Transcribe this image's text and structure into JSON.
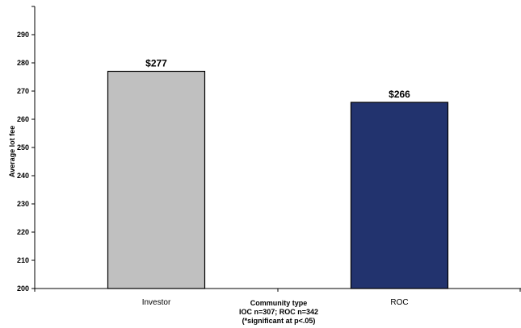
{
  "chart_data": {
    "type": "bar",
    "categories": [
      "Investor",
      "ROC"
    ],
    "values": [
      277,
      266
    ],
    "data_labels": [
      "$277",
      "$266"
    ],
    "bar_colors": [
      "#c0c0c0",
      "#22336e"
    ],
    "ylabel": "Average lot fee",
    "xlabel_lines": [
      "Community type",
      "IOC n=307;  ROC n=342",
      "(*significant at p<.05)"
    ],
    "ylim": [
      200,
      300
    ],
    "yticks": [
      200,
      210,
      220,
      230,
      240,
      250,
      260,
      270,
      280,
      290
    ],
    "grid": false,
    "legend": "none"
  }
}
